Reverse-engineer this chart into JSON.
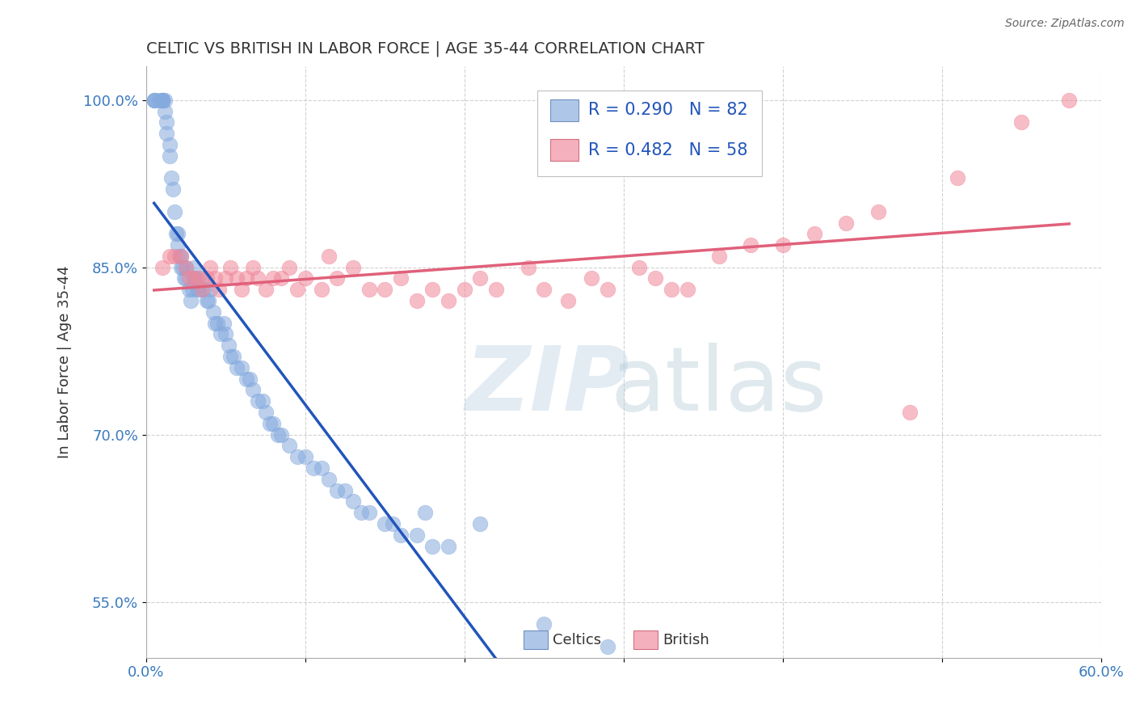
{
  "title": "CELTIC VS BRITISH IN LABOR FORCE | AGE 35-44 CORRELATION CHART",
  "source": "Source: ZipAtlas.com",
  "ylabel": "In Labor Force | Age 35-44",
  "xlabel": "",
  "xlim": [
    0.0,
    0.6
  ],
  "ylim": [
    0.5,
    1.03
  ],
  "yticks": [
    0.55,
    0.7,
    0.85,
    1.0
  ],
  "ytick_labels": [
    "55.0%",
    "70.0%",
    "85.0%",
    "100.0%"
  ],
  "xticks": [
    0.0,
    0.1,
    0.2,
    0.3,
    0.4,
    0.5,
    0.6
  ],
  "xtick_labels": [
    "0.0%",
    "",
    "",
    "",
    "",
    "",
    "60.0%"
  ],
  "celtics_R": 0.29,
  "celtics_N": 82,
  "british_R": 0.482,
  "british_N": 58,
  "celtics_color": "#85aade",
  "british_color": "#f0879a",
  "celtics_line_color": "#2255bb",
  "british_line_color": "#e0607a",
  "celtics_x": [
    0.005,
    0.005,
    0.005,
    0.008,
    0.01,
    0.01,
    0.01,
    0.01,
    0.012,
    0.012,
    0.013,
    0.013,
    0.015,
    0.015,
    0.016,
    0.017,
    0.018,
    0.019,
    0.02,
    0.02,
    0.021,
    0.022,
    0.022,
    0.023,
    0.024,
    0.025,
    0.025,
    0.027,
    0.028,
    0.029,
    0.03,
    0.03,
    0.031,
    0.032,
    0.033,
    0.035,
    0.036,
    0.038,
    0.039,
    0.04,
    0.042,
    0.043,
    0.045,
    0.047,
    0.049,
    0.05,
    0.052,
    0.053,
    0.055,
    0.057,
    0.06,
    0.063,
    0.065,
    0.067,
    0.07,
    0.073,
    0.075,
    0.078,
    0.08,
    0.083,
    0.085,
    0.09,
    0.095,
    0.1,
    0.105,
    0.11,
    0.115,
    0.12,
    0.125,
    0.13,
    0.135,
    0.14,
    0.15,
    0.155,
    0.16,
    0.17,
    0.175,
    0.18,
    0.19,
    0.21,
    0.25,
    0.29
  ],
  "celtics_y": [
    1.0,
    1.0,
    1.0,
    1.0,
    1.0,
    1.0,
    1.0,
    1.0,
    1.0,
    0.99,
    0.98,
    0.97,
    0.96,
    0.95,
    0.93,
    0.92,
    0.9,
    0.88,
    0.88,
    0.87,
    0.86,
    0.86,
    0.85,
    0.85,
    0.84,
    0.85,
    0.84,
    0.83,
    0.82,
    0.83,
    0.84,
    0.85,
    0.84,
    0.83,
    0.83,
    0.84,
    0.83,
    0.82,
    0.82,
    0.83,
    0.81,
    0.8,
    0.8,
    0.79,
    0.8,
    0.79,
    0.78,
    0.77,
    0.77,
    0.76,
    0.76,
    0.75,
    0.75,
    0.74,
    0.73,
    0.73,
    0.72,
    0.71,
    0.71,
    0.7,
    0.7,
    0.69,
    0.68,
    0.68,
    0.67,
    0.67,
    0.66,
    0.65,
    0.65,
    0.64,
    0.63,
    0.63,
    0.62,
    0.62,
    0.61,
    0.61,
    0.63,
    0.6,
    0.6,
    0.62,
    0.53,
    0.51
  ],
  "british_x": [
    0.01,
    0.015,
    0.018,
    0.022,
    0.025,
    0.027,
    0.03,
    0.033,
    0.035,
    0.038,
    0.04,
    0.043,
    0.046,
    0.05,
    0.053,
    0.057,
    0.06,
    0.063,
    0.067,
    0.07,
    0.075,
    0.08,
    0.085,
    0.09,
    0.095,
    0.1,
    0.11,
    0.115,
    0.12,
    0.13,
    0.14,
    0.15,
    0.16,
    0.17,
    0.18,
    0.19,
    0.2,
    0.21,
    0.22,
    0.24,
    0.25,
    0.265,
    0.28,
    0.29,
    0.31,
    0.32,
    0.33,
    0.34,
    0.36,
    0.38,
    0.4,
    0.42,
    0.44,
    0.46,
    0.48,
    0.51,
    0.55,
    0.58
  ],
  "british_y": [
    0.85,
    0.86,
    0.86,
    0.86,
    0.85,
    0.84,
    0.84,
    0.84,
    0.83,
    0.84,
    0.85,
    0.84,
    0.83,
    0.84,
    0.85,
    0.84,
    0.83,
    0.84,
    0.85,
    0.84,
    0.83,
    0.84,
    0.84,
    0.85,
    0.83,
    0.84,
    0.83,
    0.86,
    0.84,
    0.85,
    0.83,
    0.83,
    0.84,
    0.82,
    0.83,
    0.82,
    0.83,
    0.84,
    0.83,
    0.85,
    0.83,
    0.82,
    0.84,
    0.83,
    0.85,
    0.84,
    0.83,
    0.83,
    0.86,
    0.87,
    0.87,
    0.88,
    0.89,
    0.9,
    0.72,
    0.93,
    0.98,
    1.0
  ]
}
